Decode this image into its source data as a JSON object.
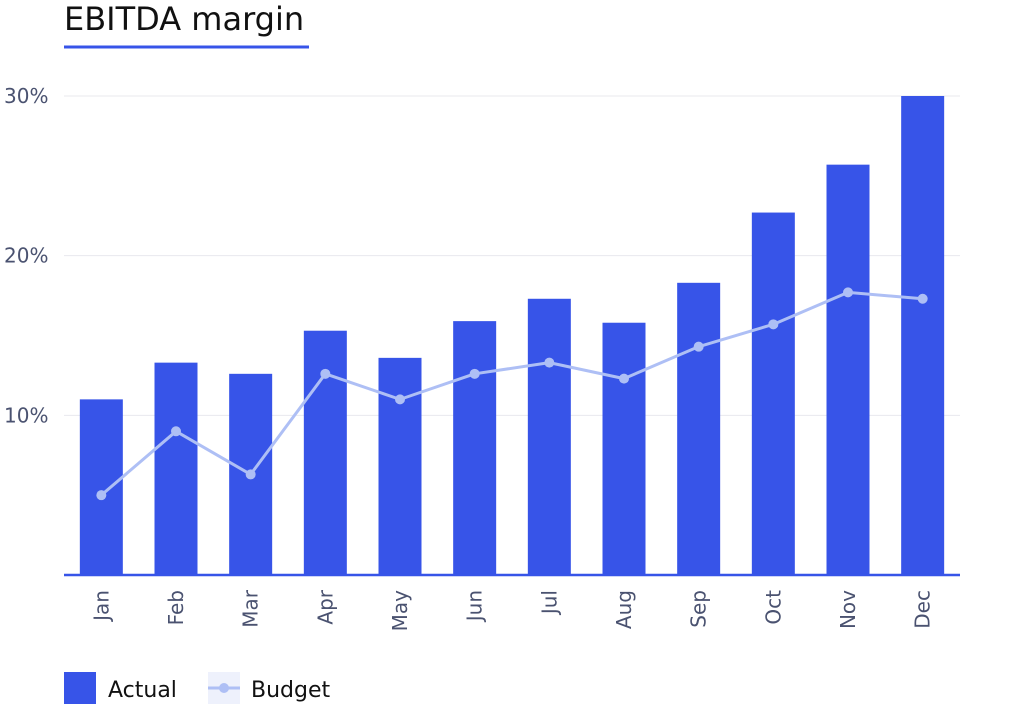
{
  "title": "EBITDA margin",
  "colors": {
    "actual": "#3754e8",
    "budget": "#aebff5",
    "underline": "#3754e8",
    "grid": "#e8e8ee",
    "axis": "#3754e8"
  },
  "legend": {
    "actual_label": "Actual",
    "budget_label": "Budget"
  },
  "chart_data": {
    "type": "bar",
    "title": "EBITDA margin",
    "xlabel": "",
    "ylabel": "",
    "ylim": [
      0,
      30
    ],
    "yticks": [
      10,
      20,
      30
    ],
    "ytick_labels": [
      "10%",
      "20%",
      "30%"
    ],
    "categories": [
      "Jan",
      "Feb",
      "Mar",
      "Apr",
      "May",
      "Jun",
      "Jul",
      "Aug",
      "Sep",
      "Oct",
      "Nov",
      "Dec"
    ],
    "series": [
      {
        "name": "Actual",
        "type": "bar",
        "values": [
          11.0,
          13.3,
          12.6,
          15.3,
          13.6,
          15.9,
          17.3,
          15.8,
          18.3,
          22.7,
          25.7,
          30.0
        ]
      },
      {
        "name": "Budget",
        "type": "line",
        "values": [
          5.0,
          9.0,
          6.3,
          12.6,
          11.0,
          12.6,
          13.3,
          12.3,
          14.3,
          15.7,
          17.7,
          17.3
        ]
      }
    ],
    "grid": "horizontal",
    "legend_position": "bottom-left"
  }
}
